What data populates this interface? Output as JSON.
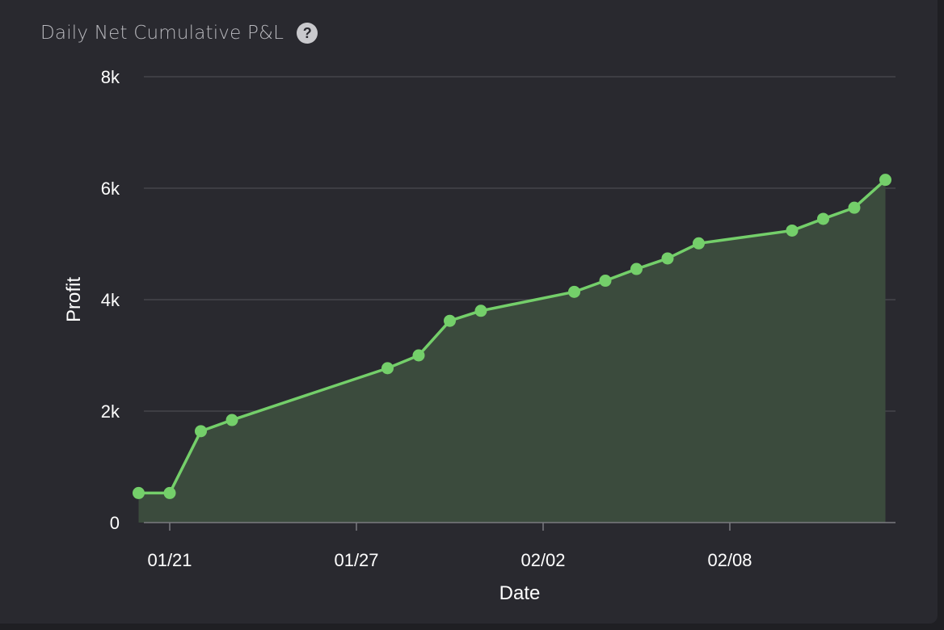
{
  "header": {
    "title": "Daily Net Cumulative P&L",
    "help_glyph": "?"
  },
  "chart_data": {
    "type": "area",
    "title": "Daily Net Cumulative P&L",
    "xlabel": "Date",
    "ylabel": "Profit",
    "ylim": [
      0,
      8000
    ],
    "yticks": [
      0,
      2000,
      4000,
      6000,
      8000
    ],
    "ytick_labels": [
      "0",
      "2k",
      "4k",
      "6k",
      "8k"
    ],
    "xticks": [
      "2024-01-21",
      "2024-01-27",
      "2024-02-02",
      "2024-02-08"
    ],
    "xtick_labels": [
      "01/21",
      "01/27",
      "02/02",
      "02/08"
    ],
    "grid": true,
    "series": [
      {
        "x": [
          "2024-01-20",
          "2024-01-21",
          "2024-01-22",
          "2024-01-23",
          "2024-01-28",
          "2024-01-29",
          "2024-01-30",
          "2024-01-31",
          "2024-02-03",
          "2024-02-04",
          "2024-02-05",
          "2024-02-06",
          "2024-02-07",
          "2024-02-10",
          "2024-02-11",
          "2024-02-12",
          "2024-02-13"
        ],
        "values": [
          530,
          530,
          1640,
          1840,
          2770,
          3000,
          3620,
          3800,
          4140,
          4340,
          4550,
          4740,
          5010,
          5240,
          5450,
          5650,
          6150
        ],
        "color": "#74cf6a",
        "fill": "#3b4b3d"
      }
    ]
  }
}
